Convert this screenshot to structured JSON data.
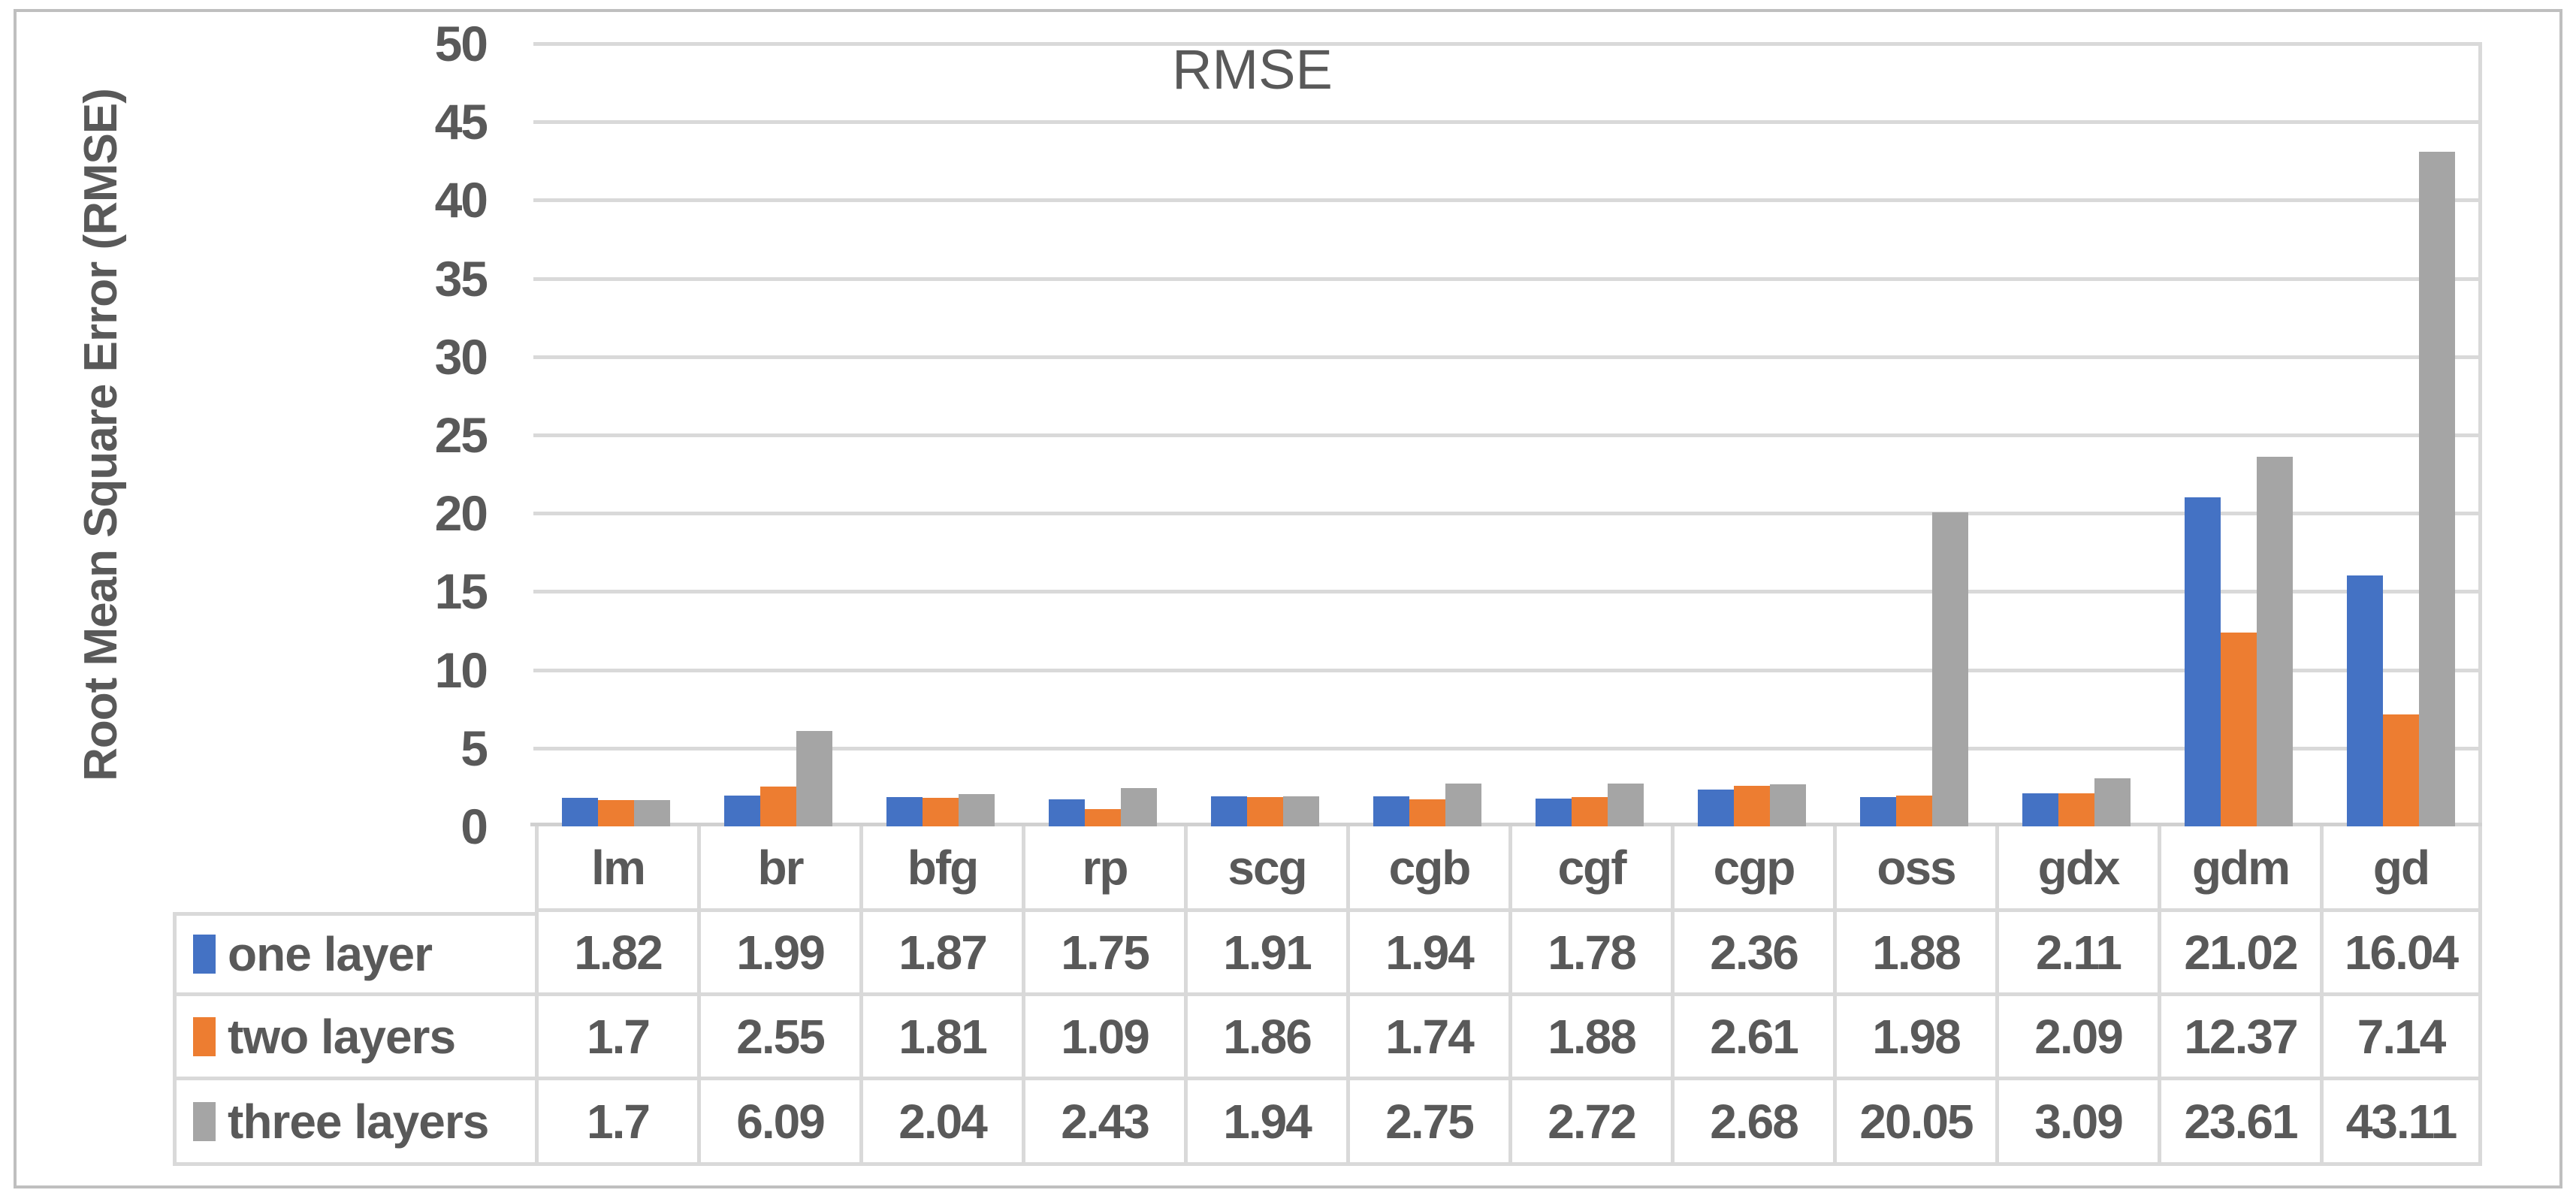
{
  "figure": {
    "background": "#FFFFFF",
    "frame_color": "#BFBFBF",
    "text_color": "#595959",
    "gridline_color": "#D9D9D9"
  },
  "chart_data": {
    "type": "bar",
    "title": "RMSE",
    "xlabel": "",
    "ylabel": "Root Mean Square Error (RMSE)",
    "ylim": [
      0,
      50
    ],
    "yticks": [
      0,
      5,
      10,
      15,
      20,
      25,
      30,
      35,
      40,
      45,
      50
    ],
    "grid": "horizontal",
    "legend_position": "data-table-left",
    "categories": [
      "lm",
      "br",
      "bfg",
      "rp",
      "scg",
      "cgb",
      "cgf",
      "cgp",
      "oss",
      "gdx",
      "gdm",
      "gd"
    ],
    "series": [
      {
        "name": "one layer",
        "color": "#4472C4",
        "values": [
          1.82,
          1.99,
          1.87,
          1.75,
          1.91,
          1.94,
          1.78,
          2.36,
          1.88,
          2.11,
          21.02,
          16.04
        ]
      },
      {
        "name": "two layers",
        "color": "#ED7D31",
        "values": [
          1.7,
          2.55,
          1.81,
          1.09,
          1.86,
          1.74,
          1.88,
          2.61,
          1.98,
          2.09,
          12.37,
          7.14
        ]
      },
      {
        "name": "three layers",
        "color": "#A5A5A5",
        "values": [
          1.7,
          6.09,
          2.04,
          2.43,
          1.94,
          2.75,
          2.72,
          2.68,
          20.05,
          3.09,
          23.61,
          43.11
        ]
      }
    ]
  }
}
